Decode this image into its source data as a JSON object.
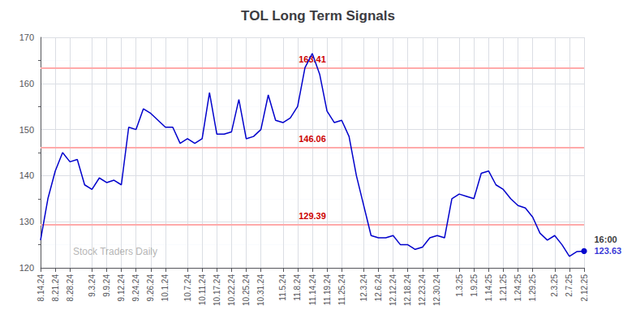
{
  "chart_data": {
    "type": "line",
    "title": "TOL Long Term Signals",
    "categories": [
      "8.14.24",
      null,
      "8.21.24",
      null,
      "8.28.24",
      null,
      null,
      "9.3.24",
      null,
      "9.9.24",
      null,
      "9.12.24",
      null,
      "9.24.24",
      null,
      "9.26.24",
      null,
      "10.1.24",
      null,
      null,
      "10.7.24",
      null,
      "10.11.24",
      null,
      "10.17.24",
      null,
      "10.22.24",
      null,
      "10.25.24",
      null,
      "10.31.24",
      null,
      null,
      "11.5.24",
      null,
      "11.8.24",
      null,
      "11.14.24",
      null,
      "11.19.24",
      null,
      "11.25.24",
      null,
      null,
      "12.3.24",
      null,
      "12.6.24",
      null,
      "12.12.24",
      null,
      "12.18.24",
      null,
      "12.23.24",
      null,
      "12.30.24",
      null,
      null,
      "1.3.25",
      null,
      "1.9.25",
      null,
      "1.14.25",
      null,
      "1.21.25",
      null,
      "1.24.25",
      null,
      "1.29.25",
      null,
      null,
      "2.3.25",
      null,
      "2.7.25",
      null,
      "2.12.25"
    ],
    "values": [
      126.0,
      135.0,
      141.0,
      145.0,
      143.0,
      143.5,
      138.0,
      137.0,
      139.5,
      138.5,
      139.0,
      138.0,
      150.5,
      150.0,
      154.5,
      153.5,
      152.0,
      150.5,
      150.5,
      147.0,
      148.0,
      147.0,
      148.0,
      158.0,
      149.0,
      149.0,
      149.5,
      156.5,
      148.0,
      148.5,
      150.0,
      157.5,
      152.0,
      151.5,
      152.5,
      155.0,
      163.41,
      166.5,
      162.0,
      154.0,
      151.5,
      152.0,
      148.5,
      140.0,
      133.5,
      127.0,
      126.5,
      126.5,
      127.0,
      125.0,
      125.0,
      124.0,
      124.5,
      126.5,
      127.0,
      126.5,
      135.0,
      136.0,
      135.5,
      135.0,
      140.5,
      141.0,
      138.0,
      137.0,
      135.0,
      133.5,
      133.0,
      131.0,
      127.5,
      126.0,
      127.0,
      125.0,
      122.5,
      123.5,
      123.63
    ],
    "color": "#0000cc",
    "ylim": [
      120,
      170
    ],
    "yticks": [
      120,
      130,
      140,
      150,
      160,
      170
    ],
    "grid": true,
    "hlines": [
      {
        "value": 163.41,
        "label": "163.41",
        "color": "#ffaaaa"
      },
      {
        "value": 146.06,
        "label": "146.06",
        "color": "#ffaaaa"
      },
      {
        "value": 129.39,
        "label": "129.39",
        "color": "#ffaaaa"
      }
    ],
    "annotations": [
      {
        "text": "16:00",
        "index": 74,
        "y": 123.63,
        "color": "#000000"
      },
      {
        "text": "123.63",
        "index": 74,
        "y": 123.63,
        "color": "#0000cc"
      },
      {
        "text": "Stock Traders Daily"
      }
    ]
  }
}
